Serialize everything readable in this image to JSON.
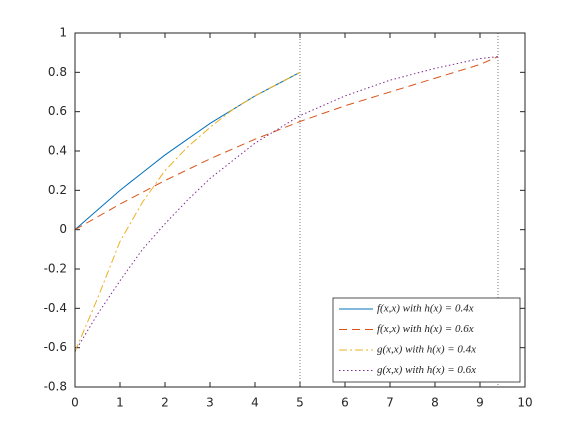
{
  "chart_data": {
    "type": "line",
    "xlim": [
      0,
      10
    ],
    "xticks": [
      0,
      1,
      2,
      3,
      4,
      5,
      6,
      7,
      8,
      9,
      10
    ],
    "ylim": [
      -0.8,
      1
    ],
    "yticks": [
      -0.8,
      -0.6,
      -0.4,
      -0.2,
      0,
      0.2,
      0.4,
      0.6,
      0.8,
      1
    ],
    "vlines": [
      5,
      9.4
    ],
    "legend": "southeast",
    "series": [
      {
        "name": "f(x,x) with h(x) = 0.4x",
        "color": "#0072bd",
        "line_style": "solid",
        "x": [
          0,
          0.5,
          1,
          1.5,
          2,
          2.5,
          3,
          3.5,
          4,
          4.5,
          5
        ],
        "values": [
          0,
          0.1,
          0.2,
          0.29,
          0.38,
          0.46,
          0.54,
          0.61,
          0.68,
          0.74,
          0.8
        ]
      },
      {
        "name": "f(x,x) with h(x) = 0.6x",
        "color": "#d95319",
        "line_style": "dashed",
        "x": [
          0,
          1,
          2,
          3,
          4,
          5,
          6,
          7,
          8,
          9,
          9.4
        ],
        "values": [
          0,
          0.13,
          0.25,
          0.36,
          0.46,
          0.55,
          0.63,
          0.7,
          0.77,
          0.84,
          0.88
        ]
      },
      {
        "name": "g(x,x) with h(x) = 0.4x",
        "color": "#edb120",
        "line_style": "dashdot",
        "x": [
          0,
          0.5,
          1,
          1.5,
          2,
          2.5,
          3,
          3.5,
          4,
          4.5,
          5
        ],
        "values": [
          -0.62,
          -0.35,
          -0.06,
          0.14,
          0.3,
          0.42,
          0.52,
          0.61,
          0.68,
          0.74,
          0.8
        ]
      },
      {
        "name": "g(x,x) with h(x) = 0.6x",
        "color": "#7e2f8e",
        "line_style": "dotted",
        "x": [
          0,
          0.5,
          1,
          1.5,
          2,
          2.5,
          3,
          4,
          5,
          6,
          7,
          8,
          9,
          9.4
        ],
        "values": [
          -0.62,
          -0.43,
          -0.26,
          -0.1,
          0.03,
          0.15,
          0.26,
          0.44,
          0.58,
          0.68,
          0.76,
          0.82,
          0.87,
          0.88
        ]
      }
    ]
  }
}
